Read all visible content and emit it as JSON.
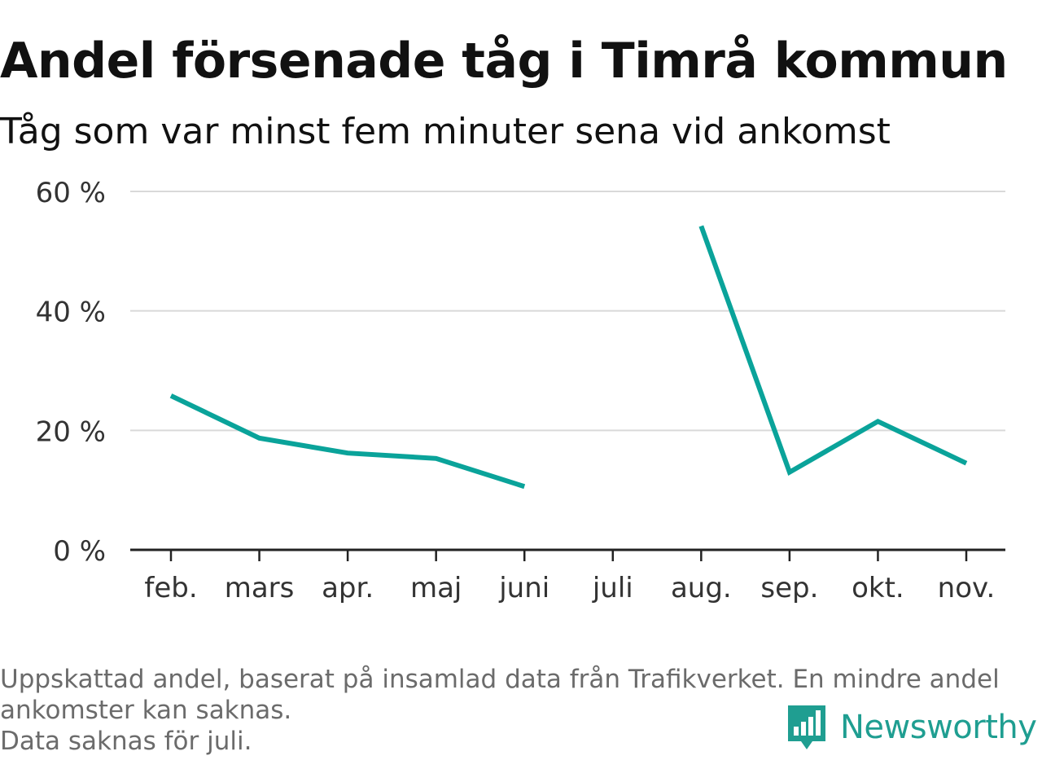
{
  "header": {
    "title": "Andel försenade tåg i Timrå kommun",
    "subtitle": "Tåg som var minst fem minuter sena vid ankomst"
  },
  "footer": {
    "note_line1": "Uppskattad andel, baserat på insamlad data från Trafikverket. En mindre andel",
    "note_line2": "ankomster kan saknas.",
    "note_line3": "Data saknas för juli.",
    "logo_text": "Newsworthy"
  },
  "colors": {
    "line": "#0aa39a",
    "grid": "#d9d9d9",
    "axis": "#222222",
    "logo": "#1f9e91"
  },
  "chart_data": {
    "type": "line",
    "categories": [
      "feb.",
      "mars",
      "apr.",
      "maj",
      "juni",
      "juli",
      "aug.",
      "sep.",
      "okt.",
      "nov."
    ],
    "series": [
      {
        "values": [
          25.8,
          18.7,
          16.2,
          15.3,
          10.6,
          null,
          54.2,
          13.0,
          21.5,
          14.5
        ]
      }
    ],
    "ylim": [
      0,
      60
    ],
    "yticks": [
      0,
      20,
      40,
      60
    ],
    "ytick_labels": [
      "0 %",
      "20 %",
      "40 %",
      "60 %"
    ],
    "grid": true
  }
}
